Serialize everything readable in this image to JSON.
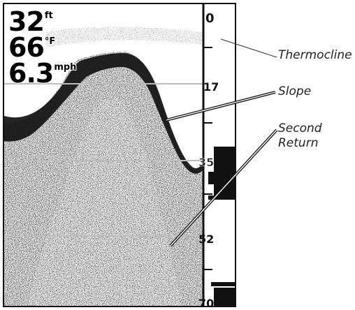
{
  "readouts": {
    "depth": {
      "value": "32",
      "unit": "ft"
    },
    "temperature": {
      "value": "66",
      "unit": "°F"
    },
    "speed": {
      "value": "6.3",
      "unit": "mph"
    }
  },
  "depth_scale": {
    "ticks": [
      "0",
      "17",
      "35",
      "52",
      "70"
    ]
  },
  "callouts": {
    "thermocline": "Thermocline",
    "slope": "Slope",
    "second_return": "Second Return"
  },
  "colors": {
    "ink": "#111111",
    "background": "#ffffff",
    "gridline": "#bdbdbd"
  }
}
